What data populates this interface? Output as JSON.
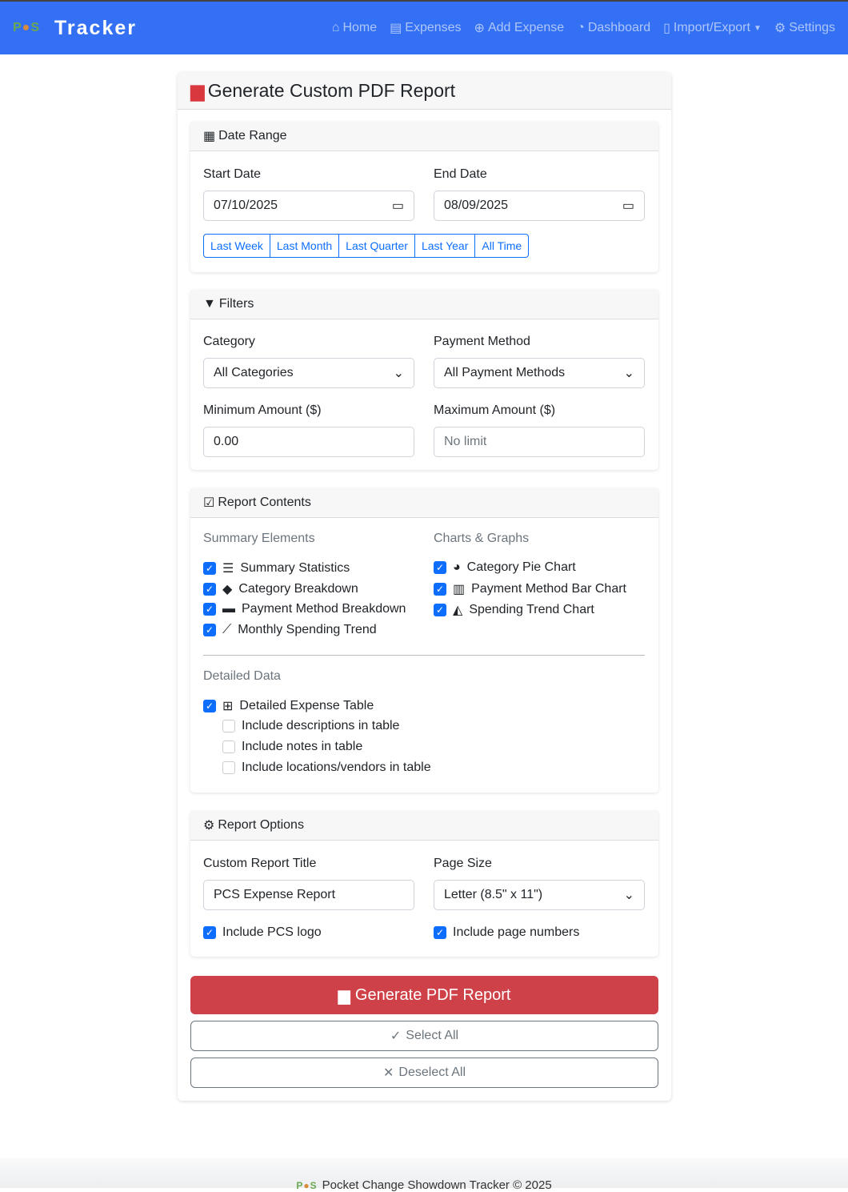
{
  "nav": {
    "logo": "PCS",
    "brand": "Tracker",
    "links": [
      {
        "icon": "home-icon",
        "label": "Home"
      },
      {
        "icon": "receipt-icon",
        "label": "Expenses"
      },
      {
        "icon": "plus-circle-icon",
        "label": "Add Expense"
      },
      {
        "icon": "pie-chart-icon",
        "label": "Dashboard"
      },
      {
        "icon": "file-icon",
        "label": "Import/Export"
      },
      {
        "icon": "gear-icon",
        "label": "Settings"
      }
    ]
  },
  "title": "Generate Custom PDF Report",
  "date_range": {
    "title": "Date Range",
    "start_label": "Start Date",
    "start_value": "07/10/2025",
    "end_label": "End Date",
    "end_value": "08/09/2025",
    "presets": [
      "Last Week",
      "Last Month",
      "Last Quarter",
      "Last Year",
      "All Time"
    ]
  },
  "filters": {
    "title": "Filters",
    "category_label": "Category",
    "category_value": "All Categories",
    "payment_label": "Payment Method",
    "payment_value": "All Payment Methods",
    "min_label": "Minimum Amount ($)",
    "min_value": "0.00",
    "max_label": "Maximum Amount ($)",
    "max_placeholder": "No limit"
  },
  "contents": {
    "title": "Report Contents",
    "summary_title": "Summary Elements",
    "summary": [
      {
        "label": "Summary Statistics",
        "checked": true
      },
      {
        "label": "Category Breakdown",
        "checked": true
      },
      {
        "label": "Payment Method Breakdown",
        "checked": true
      },
      {
        "label": "Monthly Spending Trend",
        "checked": true
      }
    ],
    "charts_title": "Charts & Graphs",
    "charts": [
      {
        "label": "Category Pie Chart",
        "checked": true
      },
      {
        "label": "Payment Method Bar Chart",
        "checked": true
      },
      {
        "label": "Spending Trend Chart",
        "checked": true
      }
    ],
    "detail_title": "Detailed Data",
    "detail": {
      "label": "Detailed Expense Table",
      "checked": true
    },
    "detail_options": [
      {
        "label": "Include descriptions in table",
        "checked": false
      },
      {
        "label": "Include notes in table",
        "checked": false
      },
      {
        "label": "Include locations/vendors in table",
        "checked": false
      }
    ]
  },
  "options": {
    "title": "Report Options",
    "custom_title_label": "Custom Report Title",
    "custom_title_value": "PCS Expense Report",
    "page_size_label": "Page Size",
    "page_size_value": "Letter (8.5\" x 11\")",
    "logo_label": "Include PCS logo",
    "page_numbers_label": "Include page numbers"
  },
  "actions": {
    "generate": "Generate PDF Report",
    "select_all": "Select All",
    "deselect_all": "Deselect All"
  },
  "footer": "Pocket Change Showdown Tracker © 2025",
  "colors": {
    "navbar": "#3370f3",
    "primary": "#0d6efd",
    "danger": "#cf4149"
  }
}
